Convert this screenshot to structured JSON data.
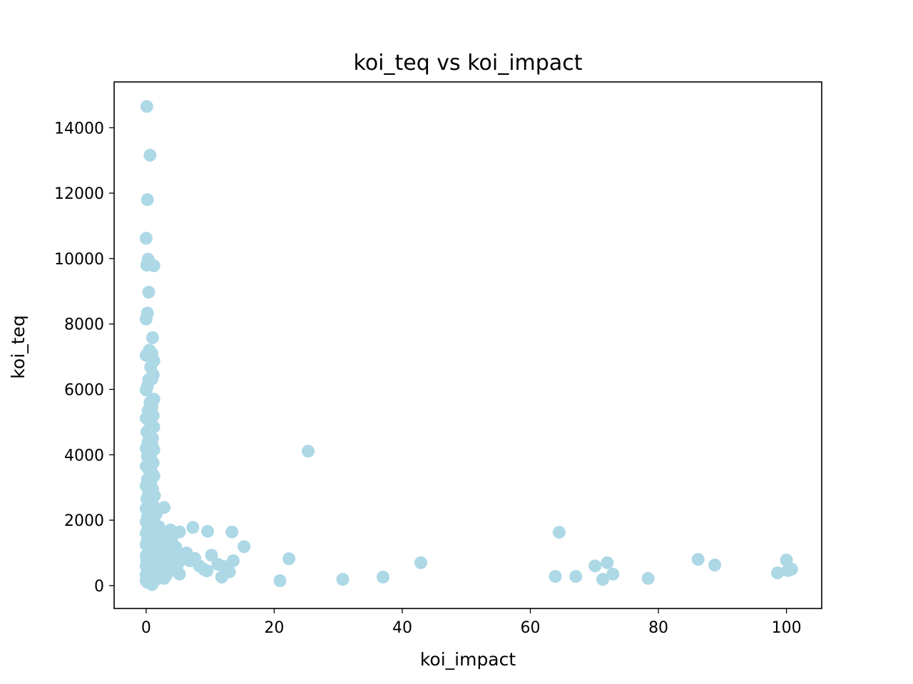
{
  "chart_data": {
    "type": "scatter",
    "title": "koi_teq vs koi_impact",
    "xlabel": "koi_impact",
    "ylabel": "koi_teq",
    "xlim": [
      -5,
      105.5
    ],
    "ylim": [
      -700,
      15400
    ],
    "xticks": [
      0,
      20,
      40,
      60,
      80,
      100
    ],
    "yticks": [
      0,
      2000,
      4000,
      6000,
      8000,
      10000,
      12000,
      14000
    ],
    "grid": false,
    "marker_color": "#add8e6",
    "series": [
      {
        "points": [
          [
            0.1,
            14650
          ],
          [
            0.6,
            13160
          ],
          [
            0.2,
            11800
          ],
          [
            0.0,
            10620
          ],
          [
            0.3,
            9980
          ],
          [
            0.1,
            9800
          ],
          [
            1.2,
            9780
          ],
          [
            0.4,
            8970
          ],
          [
            0.2,
            8330
          ],
          [
            0.0,
            8150
          ],
          [
            1.0,
            7580
          ],
          [
            0.5,
            7200
          ],
          [
            0.0,
            7040
          ],
          [
            0.9,
            7100
          ],
          [
            1.2,
            6870
          ],
          [
            0.7,
            6680
          ],
          [
            1.1,
            6450
          ],
          [
            0.4,
            6300
          ],
          [
            0.9,
            6320
          ],
          [
            0.2,
            6100
          ],
          [
            0.0,
            5980
          ],
          [
            1.2,
            5700
          ],
          [
            0.6,
            5600
          ],
          [
            0.9,
            5450
          ],
          [
            0.3,
            5350
          ],
          [
            1.1,
            5200
          ],
          [
            0.0,
            5120
          ],
          [
            0.4,
            5050
          ],
          [
            0.8,
            4950
          ],
          [
            1.2,
            4850
          ],
          [
            0.1,
            4700
          ],
          [
            0.6,
            4600
          ],
          [
            1.0,
            4500
          ],
          [
            0.3,
            4400
          ],
          [
            0.9,
            4300
          ],
          [
            0.0,
            4200
          ],
          [
            1.2,
            4150
          ],
          [
            0.5,
            4050
          ],
          [
            0.2,
            3950
          ],
          [
            0.8,
            3850
          ],
          [
            1.1,
            3750
          ],
          [
            0.0,
            3650
          ],
          [
            0.4,
            3550
          ],
          [
            0.9,
            3450
          ],
          [
            1.2,
            3350
          ],
          [
            0.2,
            3250
          ],
          [
            0.7,
            3150
          ],
          [
            0.0,
            3050
          ],
          [
            1.0,
            2950
          ],
          [
            0.4,
            2850
          ],
          [
            1.3,
            2750
          ],
          [
            0.1,
            2650
          ],
          [
            0.6,
            2550
          ],
          [
            1.1,
            2450
          ],
          [
            2.8,
            2390
          ],
          [
            0.0,
            2350
          ],
          [
            0.5,
            2250
          ],
          [
            1.6,
            2200
          ],
          [
            0.2,
            2100
          ],
          [
            1.2,
            2050
          ],
          [
            0.0,
            1950
          ],
          [
            0.7,
            1850
          ],
          [
            2.0,
            1800
          ],
          [
            0.3,
            1750
          ],
          [
            3.8,
            1700
          ],
          [
            1.0,
            1650
          ],
          [
            5.2,
            1640
          ],
          [
            0.0,
            1600
          ],
          [
            2.5,
            1550
          ],
          [
            0.5,
            1500
          ],
          [
            1.5,
            1450
          ],
          [
            4.0,
            1420
          ],
          [
            0.2,
            1380
          ],
          [
            3.0,
            1350
          ],
          [
            1.0,
            1300
          ],
          [
            0.0,
            1250
          ],
          [
            2.0,
            1200
          ],
          [
            4.6,
            1180
          ],
          [
            0.6,
            1150
          ],
          [
            1.5,
            1100
          ],
          [
            3.2,
            1050
          ],
          [
            0.3,
            1000
          ],
          [
            6.3,
            1000
          ],
          [
            2.4,
            960
          ],
          [
            0.0,
            920
          ],
          [
            1.2,
            900
          ],
          [
            4.0,
            880
          ],
          [
            5.5,
            850
          ],
          [
            0.7,
            830
          ],
          [
            2.8,
            800
          ],
          [
            0.1,
            780
          ],
          [
            6.8,
            760
          ],
          [
            1.8,
            740
          ],
          [
            3.5,
            720
          ],
          [
            0.4,
            700
          ],
          [
            5.0,
            680
          ],
          [
            1.0,
            650
          ],
          [
            2.5,
            620
          ],
          [
            0.0,
            600
          ],
          [
            4.2,
            580
          ],
          [
            1.5,
            560
          ],
          [
            3.0,
            540
          ],
          [
            0.6,
            520
          ],
          [
            2.0,
            500
          ],
          [
            4.8,
            480
          ],
          [
            0.2,
            460
          ],
          [
            1.2,
            440
          ],
          [
            3.5,
            420
          ],
          [
            0.8,
            400
          ],
          [
            2.6,
            380
          ],
          [
            5.2,
            350
          ],
          [
            0.0,
            330
          ],
          [
            1.7,
            320
          ],
          [
            3.1,
            300
          ],
          [
            0.5,
            280
          ],
          [
            2.2,
            260
          ],
          [
            1.0,
            240
          ],
          [
            2.8,
            220
          ],
          [
            0.3,
            200
          ],
          [
            1.5,
            180
          ],
          [
            0.0,
            150
          ],
          [
            0.8,
            120
          ],
          [
            0.2,
            100
          ],
          [
            0.9,
            30
          ],
          [
            7.3,
            1780
          ],
          [
            9.6,
            1660
          ],
          [
            13.4,
            1640
          ],
          [
            15.3,
            1190
          ],
          [
            10.2,
            930
          ],
          [
            7.6,
            830
          ],
          [
            22.3,
            820
          ],
          [
            13.6,
            760
          ],
          [
            8.3,
            600
          ],
          [
            9.0,
            500
          ],
          [
            9.5,
            450
          ],
          [
            11.2,
            650
          ],
          [
            12.3,
            580
          ],
          [
            13.0,
            420
          ],
          [
            11.8,
            260
          ],
          [
            20.9,
            150
          ],
          [
            25.3,
            4110
          ],
          [
            30.7,
            190
          ],
          [
            37.0,
            260
          ],
          [
            42.9,
            700
          ],
          [
            64.5,
            1630
          ],
          [
            63.9,
            280
          ],
          [
            67.1,
            280
          ],
          [
            70.1,
            600
          ],
          [
            72.0,
            700
          ],
          [
            71.3,
            190
          ],
          [
            72.9,
            350
          ],
          [
            78.4,
            220
          ],
          [
            86.2,
            800
          ],
          [
            88.8,
            630
          ],
          [
            98.6,
            390
          ],
          [
            100.0,
            780
          ],
          [
            100.8,
            500
          ],
          [
            100.2,
            460
          ]
        ]
      }
    ]
  }
}
